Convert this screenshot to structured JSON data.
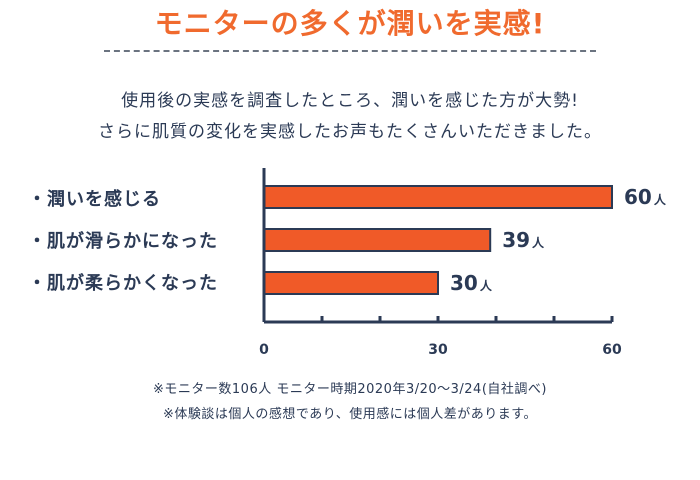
{
  "headline": "モニターの多くが潤いを実感!",
  "intro": {
    "line1": "使用後の実感を調査したところ、潤いを感じた方が大勢!",
    "line2": "さらに肌質の変化を実感したお声もたくさんいただきました。"
  },
  "chart_data": {
    "type": "bar",
    "orientation": "horizontal",
    "categories": [
      "・潤いを感じる",
      "・肌が滑らかになった",
      "・肌が柔らかくなった"
    ],
    "values": [
      60,
      39,
      30
    ],
    "value_unit": "人",
    "xticks": [
      0,
      30,
      60
    ],
    "xlim": [
      0,
      60
    ],
    "bar_color": "#f05a28",
    "axis_color": "#2b3a55"
  },
  "notes": {
    "line1": "※モニター数106人 モニター時期2020年3/20〜3/24(自社調べ)",
    "line2": "※体験談は個人の感想であり、使用感には個人差があります。"
  }
}
